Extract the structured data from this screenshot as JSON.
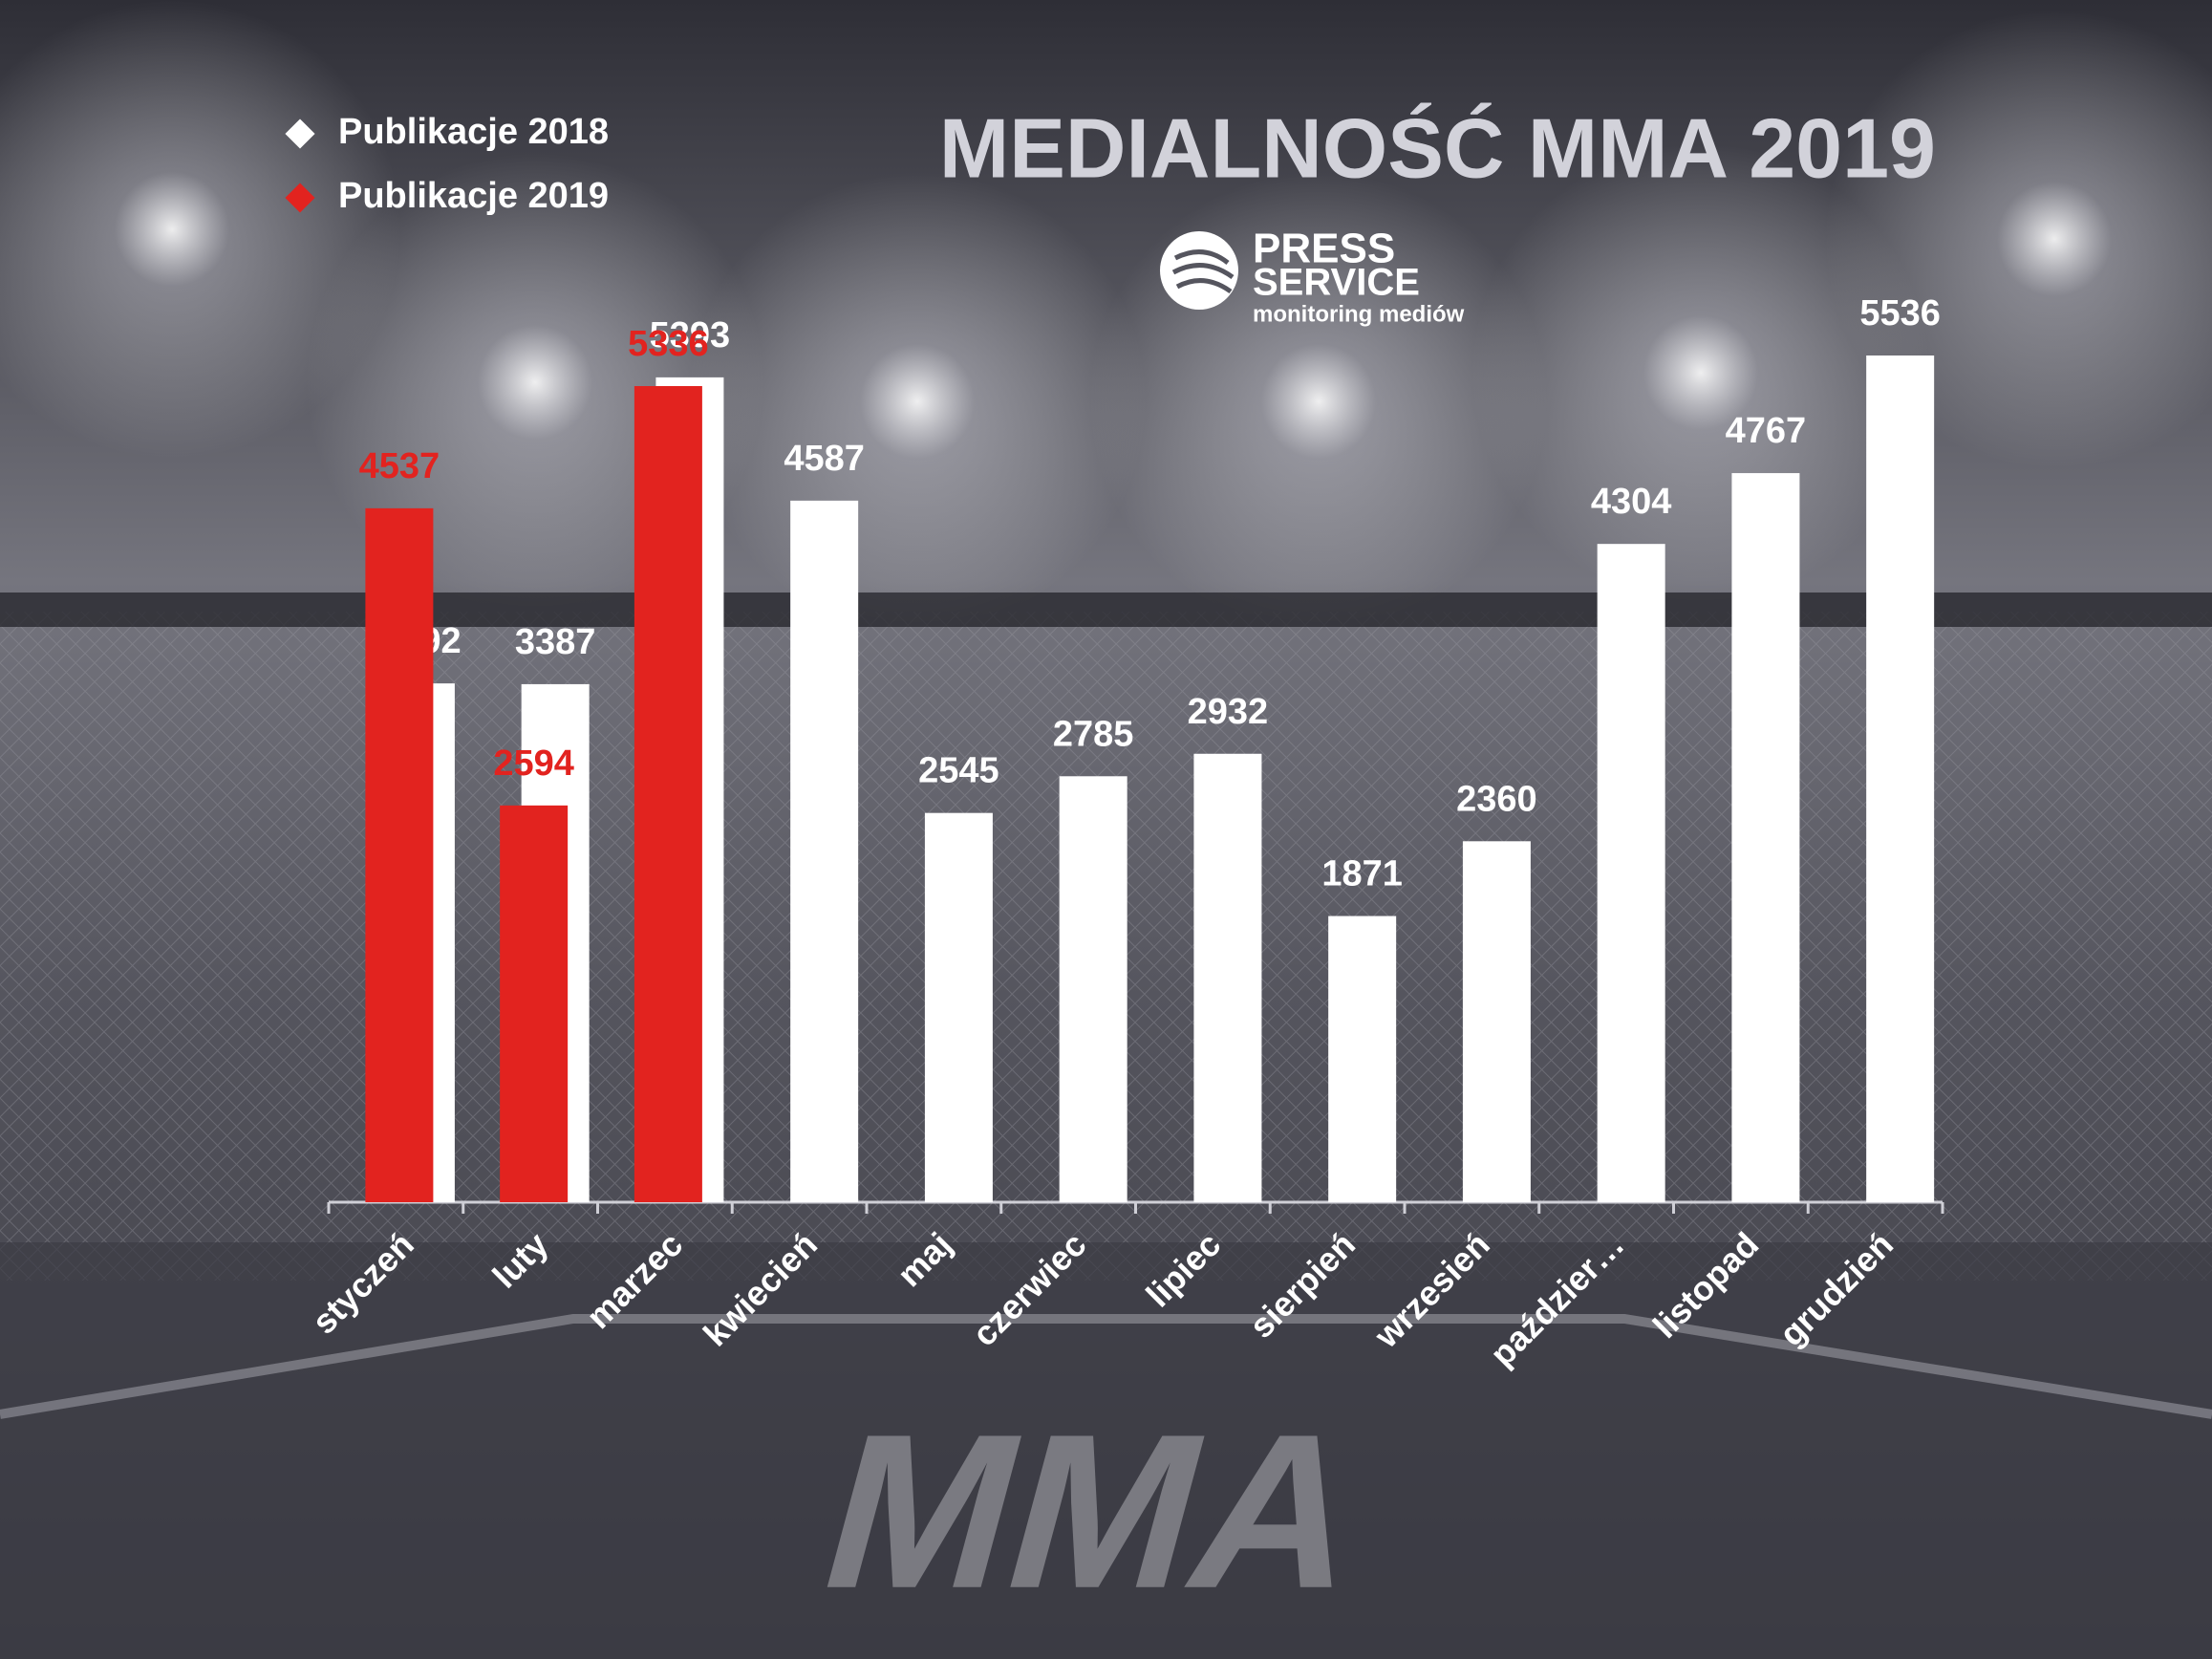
{
  "chart_data": {
    "type": "bar",
    "title": "MEDIALNOŚĆ MMA 2019",
    "logo": {
      "line1": "PRESS",
      "line2": "SERVICE",
      "line3": "monitoring mediów"
    },
    "background_text": "MMA",
    "legend": "top-left",
    "categories": [
      "styczeń",
      "luty",
      "marzec",
      "kwiecień",
      "maj",
      "czerwiec",
      "lipiec",
      "sierpień",
      "wrzesień",
      "paździer…",
      "listopad",
      "grudzień"
    ],
    "series": [
      {
        "name": "Publikacje 2018",
        "color": "#ffffff",
        "values": [
          3392,
          3387,
          5393,
          4587,
          2545,
          2785,
          2932,
          1871,
          2360,
          4304,
          4767,
          5536
        ]
      },
      {
        "name": "Publikacje 2019",
        "color": "#e2231f",
        "values": [
          4537,
          2594,
          5336,
          null,
          null,
          null,
          null,
          null,
          null,
          null,
          null,
          null
        ]
      }
    ]
  }
}
